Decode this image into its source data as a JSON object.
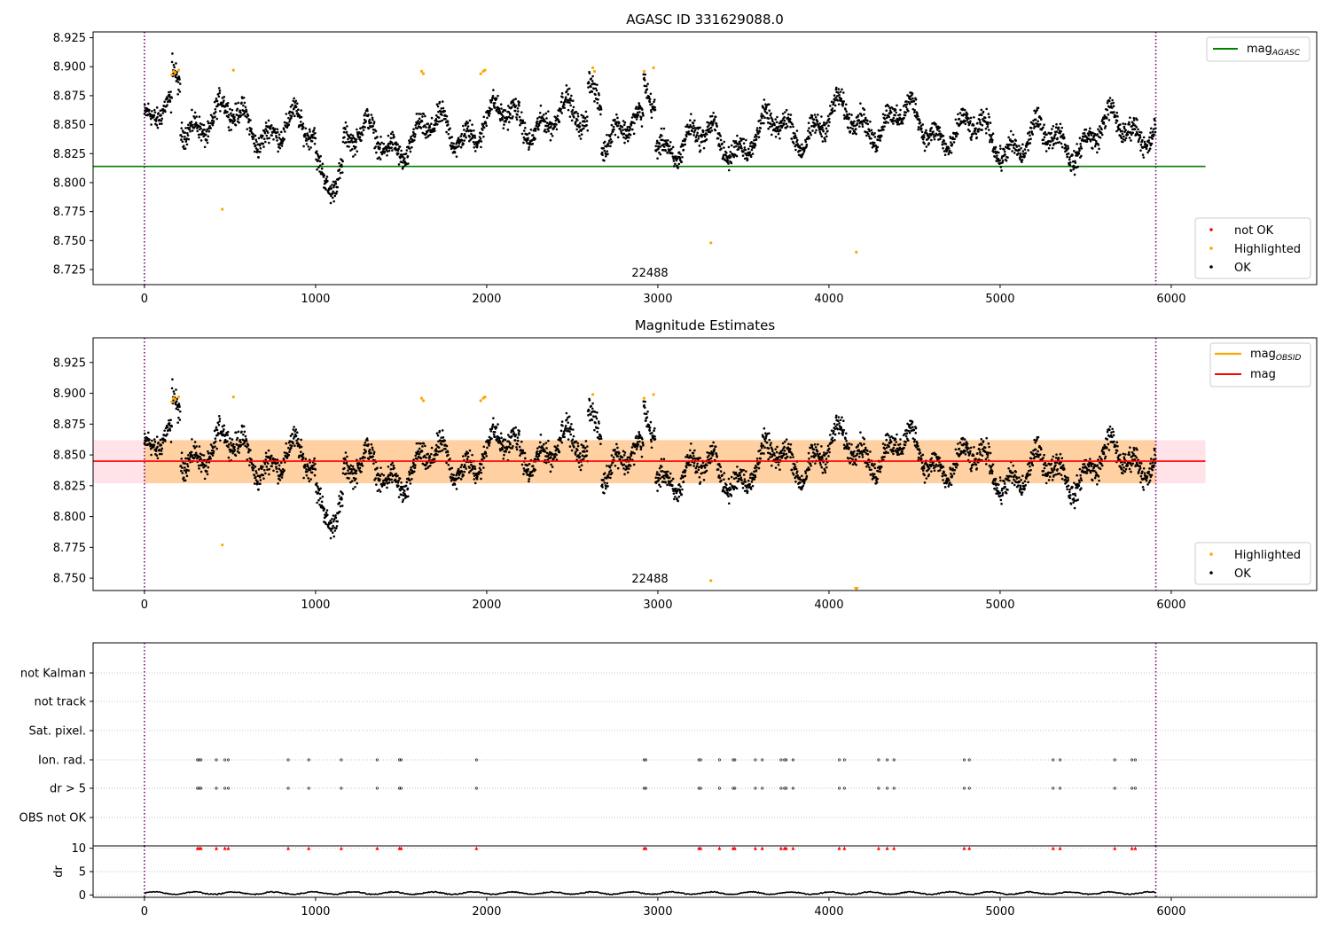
{
  "chart_data": [
    {
      "type": "scatter",
      "title": "AGASC ID 331629088.0",
      "xlim": [
        -300,
        6850
      ],
      "ylim": [
        8.712,
        8.93
      ],
      "x_ticks": [
        0,
        1000,
        2000,
        3000,
        4000,
        5000,
        6000
      ],
      "x_tick_labels": [
        "0",
        "1000",
        "2000",
        "3000",
        "4000",
        "5000",
        "6000"
      ],
      "y_ticks": [
        8.725,
        8.75,
        8.775,
        8.8,
        8.825,
        8.85,
        8.875,
        8.9,
        8.925
      ],
      "y_tick_labels": [
        "8.725",
        "8.750",
        "8.775",
        "8.800",
        "8.825",
        "8.850",
        "8.875",
        "8.900",
        "8.925"
      ],
      "obsid_label": "22488",
      "obsid_label_x": 2950,
      "obsid_boundaries": [
        0,
        5910
      ],
      "reference_lines": [
        {
          "name": "mag_AGASC",
          "y": 8.814,
          "x_range": [
            -300,
            6200
          ],
          "color": "#008000"
        }
      ],
      "legend_lines": [
        {
          "text": "mag",
          "sub": "AGASC",
          "color": "#008000"
        }
      ],
      "legend_points": [
        {
          "text": "not OK",
          "color": "#ff0000"
        },
        {
          "text": "Highlighted",
          "color": "#ffa500"
        },
        {
          "text": "OK",
          "color": "#000000"
        }
      ],
      "highlighted_points": [
        [
          160,
          8.893
        ],
        [
          170,
          8.896
        ],
        [
          180,
          8.895
        ],
        [
          200,
          8.897
        ],
        [
          455,
          8.777
        ],
        [
          520,
          8.897
        ],
        [
          1620,
          8.896
        ],
        [
          1630,
          8.894
        ],
        [
          1965,
          8.894
        ],
        [
          1980,
          8.896
        ],
        [
          1990,
          8.897
        ],
        [
          2620,
          8.899
        ],
        [
          2630,
          8.896
        ],
        [
          2920,
          8.896
        ],
        [
          2975,
          8.899
        ],
        [
          3310,
          8.748
        ],
        [
          4160,
          8.74
        ]
      ],
      "ok_points_summary": "≈5900 OK samples from x=0 to x=5910, magnitude ≈8.80–8.89"
    },
    {
      "type": "scatter",
      "title": "Magnitude Estimates",
      "xlim": [
        -300,
        6850
      ],
      "ylim": [
        8.74,
        8.945
      ],
      "x_ticks": [
        0,
        1000,
        2000,
        3000,
        4000,
        5000,
        6000
      ],
      "x_tick_labels": [
        "0",
        "1000",
        "2000",
        "3000",
        "4000",
        "5000",
        "6000"
      ],
      "y_ticks": [
        8.75,
        8.775,
        8.8,
        8.825,
        8.85,
        8.875,
        8.9,
        8.925
      ],
      "y_tick_labels": [
        "8.750",
        "8.775",
        "8.800",
        "8.825",
        "8.850",
        "8.875",
        "8.900",
        "8.925"
      ],
      "obsid_label": "22488",
      "obsid_label_x": 2950,
      "obsid_boundaries": [
        0,
        5910
      ],
      "reference_lines": [
        {
          "name": "mag",
          "y": 8.845,
          "x_range": [
            -300,
            6200
          ],
          "color": "#ff0000"
        }
      ],
      "bands": [
        {
          "name": "mag band",
          "y_range": [
            8.827,
            8.862
          ],
          "x_range": [
            -300,
            6200
          ],
          "color": "#ffc0cb"
        },
        {
          "name": "mag_OBSID band",
          "y_range": [
            8.827,
            8.862
          ],
          "x_range": [
            0,
            5910
          ],
          "color": "#ffa500"
        }
      ],
      "legend_lines": [
        {
          "text": "mag",
          "sub": "OBSID",
          "color": "#ffa500"
        },
        {
          "text": "mag",
          "sub": "",
          "color": "#ff0000"
        }
      ],
      "legend_points": [
        {
          "text": "Highlighted",
          "color": "#ffa500"
        },
        {
          "text": "OK",
          "color": "#000000"
        }
      ],
      "highlighted_points": [
        [
          160,
          8.893
        ],
        [
          170,
          8.896
        ],
        [
          180,
          8.895
        ],
        [
          200,
          8.897
        ],
        [
          455,
          8.777
        ],
        [
          520,
          8.897
        ],
        [
          1620,
          8.896
        ],
        [
          1630,
          8.894
        ],
        [
          1965,
          8.894
        ],
        [
          1980,
          8.896
        ],
        [
          1990,
          8.897
        ],
        [
          2620,
          8.899
        ],
        [
          2920,
          8.896
        ],
        [
          2975,
          8.899
        ],
        [
          3310,
          8.748
        ]
      ],
      "out_of_range_markers": [
        [
          4160,
          8.74
        ]
      ]
    },
    {
      "type": "scatter",
      "title": "",
      "xlim": [
        -300,
        6850
      ],
      "categories": [
        "not Kalman",
        "not track",
        "Sat. pixel.",
        "Ion. rad.",
        "dr > 5",
        "OBS not OK"
      ],
      "flag_times": [
        310,
        320,
        330,
        420,
        470,
        490,
        840,
        960,
        1150,
        1360,
        1490,
        1500,
        1940,
        2920,
        2930,
        3240,
        3250,
        3360,
        3440,
        3450,
        3570,
        3610,
        3720,
        3740,
        3750,
        3790,
        4060,
        4090,
        4290,
        4340,
        4380,
        4790,
        4820,
        5310,
        5350,
        5670,
        5770,
        5790
      ],
      "flag_rows": [
        "Ion. rad.",
        "dr > 5"
      ],
      "obsid_boundaries": [
        0,
        5910
      ]
    },
    {
      "type": "line",
      "title": "",
      "xlim": [
        -300,
        6850
      ],
      "ylim": [
        -0.5,
        10.5
      ],
      "ylabel": "dr",
      "x_ticks": [
        0,
        1000,
        2000,
        3000,
        4000,
        5000,
        6000
      ],
      "x_tick_labels": [
        "0",
        "1000",
        "2000",
        "3000",
        "4000",
        "5000",
        "6000"
      ],
      "y_ticks": [
        0,
        5,
        10
      ],
      "y_tick_labels": [
        "0",
        "5",
        "10"
      ],
      "dr_range": [
        0,
        1
      ],
      "high_dr_marker_y": 10,
      "marker_color": "#ff0000",
      "obsid_boundaries": [
        0,
        5910
      ]
    }
  ]
}
